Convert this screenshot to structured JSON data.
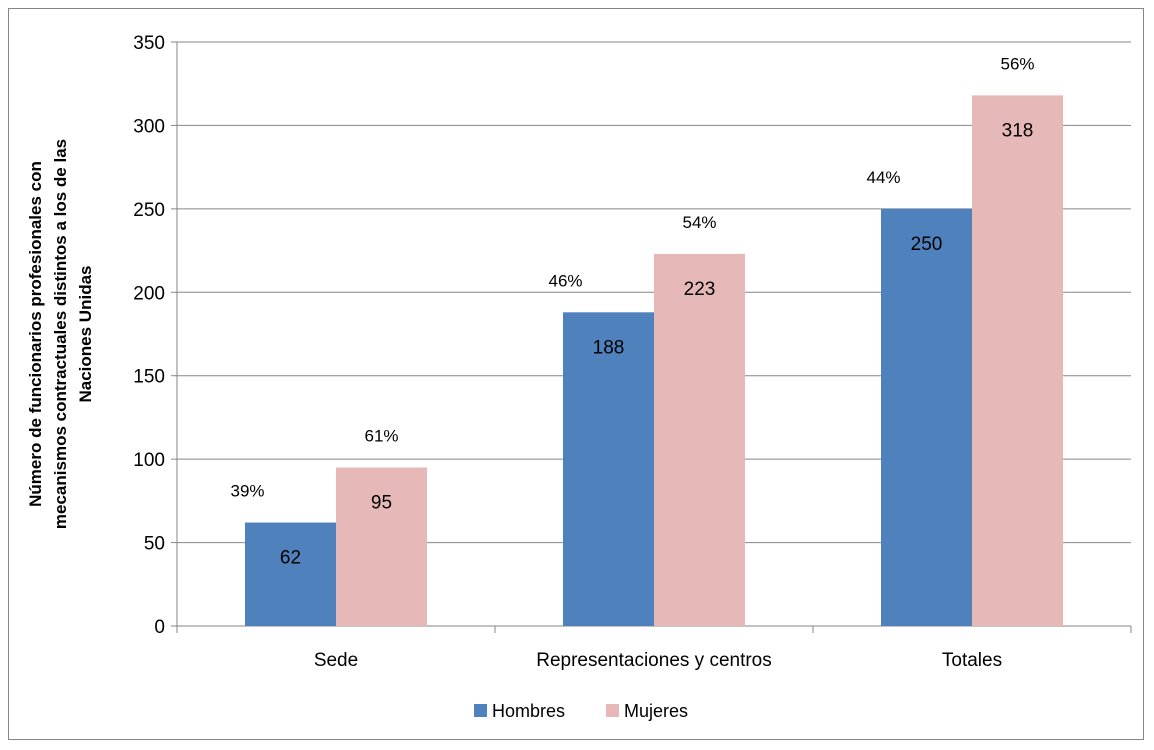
{
  "chart_data": {
    "type": "bar",
    "categories": [
      "Sede",
      "Representaciones y centros",
      "Totales"
    ],
    "series": [
      {
        "name": "Hombres",
        "values": [
          62,
          188,
          250
        ],
        "percent_labels": [
          "39%",
          "46%",
          "44%"
        ],
        "color": "#4f81bd"
      },
      {
        "name": "Mujeres",
        "values": [
          95,
          223,
          318
        ],
        "percent_labels": [
          "61%",
          "54%",
          "56%"
        ],
        "color": "#e6b9b8"
      }
    ],
    "ylabel_lines": [
      "Número de funcionarios profesionales con",
      "mecanismos contractuales distintos a los de las",
      "Naciones Unidas"
    ],
    "ylim": [
      0,
      350
    ],
    "yticks": [
      0,
      50,
      100,
      150,
      200,
      250,
      300,
      350
    ],
    "grid": true,
    "legend_position": "bottom"
  }
}
